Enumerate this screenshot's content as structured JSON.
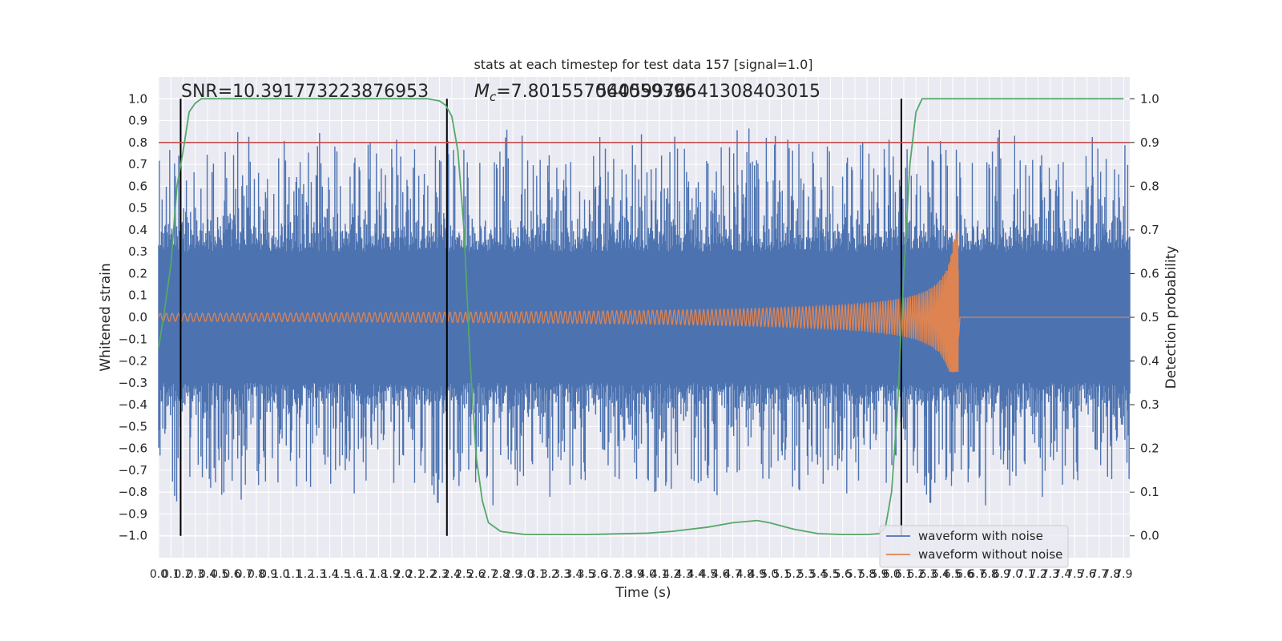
{
  "chart_data": {
    "type": "line",
    "title": "stats at each timestep for test data 157 [signal=1.0]",
    "xlabel": "Time (s)",
    "ylabel": "Whitened strain",
    "y2label": "Detection probability",
    "xlim": [
      0.0,
      7.95
    ],
    "ylim": [
      -1.1,
      1.1
    ],
    "y2lim": [
      -0.05,
      1.05
    ],
    "grid": true,
    "legend_position": "bottom-right",
    "x_ticks": [
      "0.0",
      "0.1",
      "0.2",
      "0.3",
      "0.4",
      "0.5",
      "0.6",
      "0.7",
      "0.8",
      "0.9",
      "1.0",
      "1.1",
      "1.2",
      "1.3",
      "1.4",
      "1.5",
      "1.6",
      "1.7",
      "1.8",
      "1.9",
      "2.0",
      "2.1",
      "2.2",
      "2.3",
      "2.4",
      "2.5",
      "2.6",
      "2.7",
      "2.8",
      "2.9",
      "3.0",
      "3.1",
      "3.2",
      "3.3",
      "3.4",
      "3.5",
      "3.6",
      "3.7",
      "3.8",
      "3.9",
      "4.0",
      "4.1",
      "4.2",
      "4.3",
      "4.4",
      "4.5",
      "4.6",
      "4.7",
      "4.8",
      "4.9",
      "5.0",
      "5.1",
      "5.2",
      "5.3",
      "5.4",
      "5.5",
      "5.6",
      "5.7",
      "5.8",
      "5.9",
      "6.0",
      "6.1",
      "6.2",
      "6.3",
      "6.4",
      "6.5",
      "6.6",
      "6.7",
      "6.8",
      "6.9",
      "7.0",
      "7.1",
      "7.2",
      "7.3",
      "7.4",
      "7.5",
      "7.6",
      "7.7",
      "7.8",
      "7.9"
    ],
    "y_ticks": [
      "1.0",
      "0.9",
      "0.8",
      "0.7",
      "0.6",
      "0.5",
      "0.4",
      "0.3",
      "0.2",
      "0.1",
      "0.0",
      "−0.1",
      "−0.2",
      "−0.3",
      "−0.4",
      "−0.5",
      "−0.6",
      "−0.7",
      "−0.8",
      "−0.9",
      "−1.0"
    ],
    "y2_ticks": [
      "1.0",
      "0.9",
      "0.8",
      "0.7",
      "0.6",
      "0.5",
      "0.4",
      "0.3",
      "0.2",
      "0.1",
      "0.0"
    ],
    "annotations": {
      "snr": "SNR=10.391773223876953",
      "mc_symbol": "M",
      "mc_sub": "c",
      "mc_value": "=7.801557064059396",
      "mc_overlap": "540599765413084030​15"
    },
    "series": [
      {
        "name": "waveform with noise",
        "color": "#4c72b0",
        "kind": "noise",
        "amplitude_range": [
          -1.0,
          1.0
        ]
      },
      {
        "name": "waveform without noise",
        "color": "#dd8452",
        "kind": "chirp",
        "start": 0.0,
        "merger": 6.55,
        "peak": [
          0.4,
          -0.25
        ]
      },
      {
        "name": "",
        "color": "#55a868",
        "axis": "right",
        "x": [
          0.0,
          0.05,
          0.1,
          0.15,
          0.2,
          0.25,
          0.3,
          0.35,
          0.4,
          0.5,
          0.6,
          1.0,
          1.5,
          2.0,
          2.2,
          2.3,
          2.35,
          2.4,
          2.45,
          2.5,
          2.55,
          2.6,
          2.65,
          2.7,
          2.8,
          3.0,
          3.5,
          4.0,
          4.2,
          4.5,
          4.7,
          4.9,
          5.0,
          5.2,
          5.4,
          5.6,
          5.8,
          5.9,
          5.95,
          6.0,
          6.05,
          6.1,
          6.15,
          6.2,
          6.25,
          6.3,
          6.35,
          6.5,
          7.0,
          7.9
        ],
        "y": [
          0.43,
          0.52,
          0.62,
          0.8,
          0.88,
          0.97,
          0.99,
          1.0,
          1.0,
          1.0,
          1.0,
          1.0,
          1.0,
          1.0,
          1.0,
          0.995,
          0.985,
          0.96,
          0.88,
          0.7,
          0.4,
          0.18,
          0.08,
          0.03,
          0.01,
          0.003,
          0.003,
          0.006,
          0.01,
          0.02,
          0.03,
          0.035,
          0.03,
          0.015,
          0.005,
          0.003,
          0.003,
          0.005,
          0.02,
          0.1,
          0.3,
          0.6,
          0.85,
          0.97,
          1.0,
          1.0,
          1.0,
          1.0,
          1.0,
          1.0
        ]
      },
      {
        "name": "",
        "color": "#c44e52",
        "kind": "hline",
        "axis": "right",
        "value": 0.9
      }
    ],
    "vlines": [
      0.18,
      2.36,
      6.08
    ],
    "vline_color": "#000000"
  }
}
